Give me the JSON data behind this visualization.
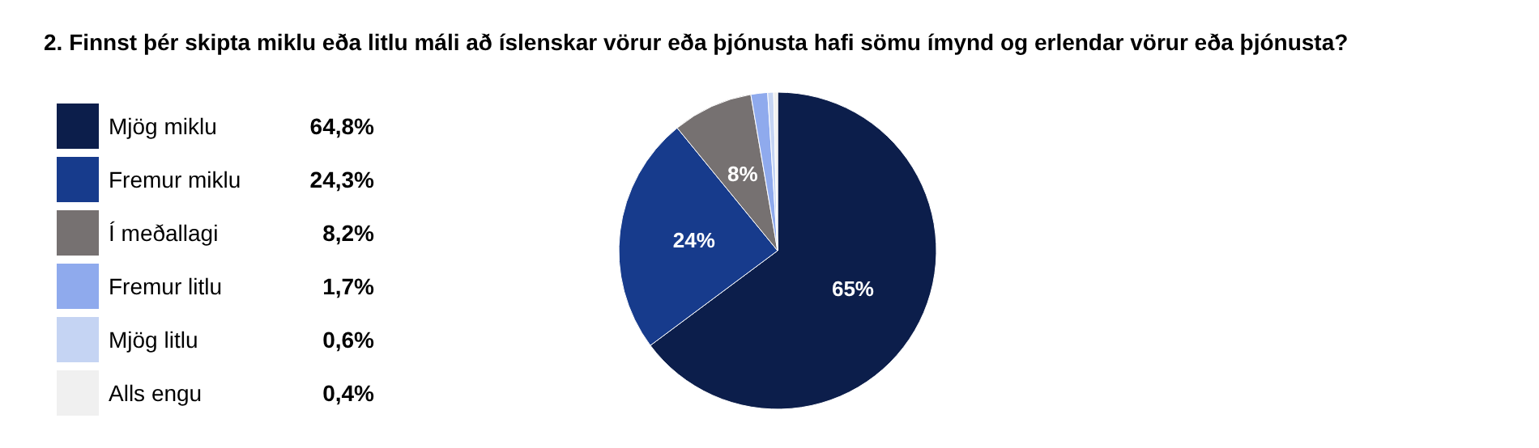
{
  "chart_data": {
    "type": "pie",
    "title": "2. Finnst þér skipta miklu eða litlu máli að íslenskar vörur eða þjónusta hafi sömu ímynd og erlendar vörur eða þjónusta?",
    "categories": [
      "Mjög miklu",
      "Fremur miklu",
      "Í meðallagi",
      "Fremur litlu",
      "Mjög litlu",
      "Alls engu"
    ],
    "values": [
      64.8,
      24.3,
      8.2,
      1.7,
      0.6,
      0.4
    ],
    "colors": [
      "#0c1e4b",
      "#173b8c",
      "#767171",
      "#8faaed",
      "#c5d4f3",
      "#f0f0f0"
    ],
    "value_labels": [
      "64,8%",
      "24,3%",
      "8,2%",
      "1,7%",
      "0,6%",
      "0,4%"
    ],
    "annotations": [
      "65%",
      "24%",
      "8%"
    ],
    "legend": "left"
  }
}
